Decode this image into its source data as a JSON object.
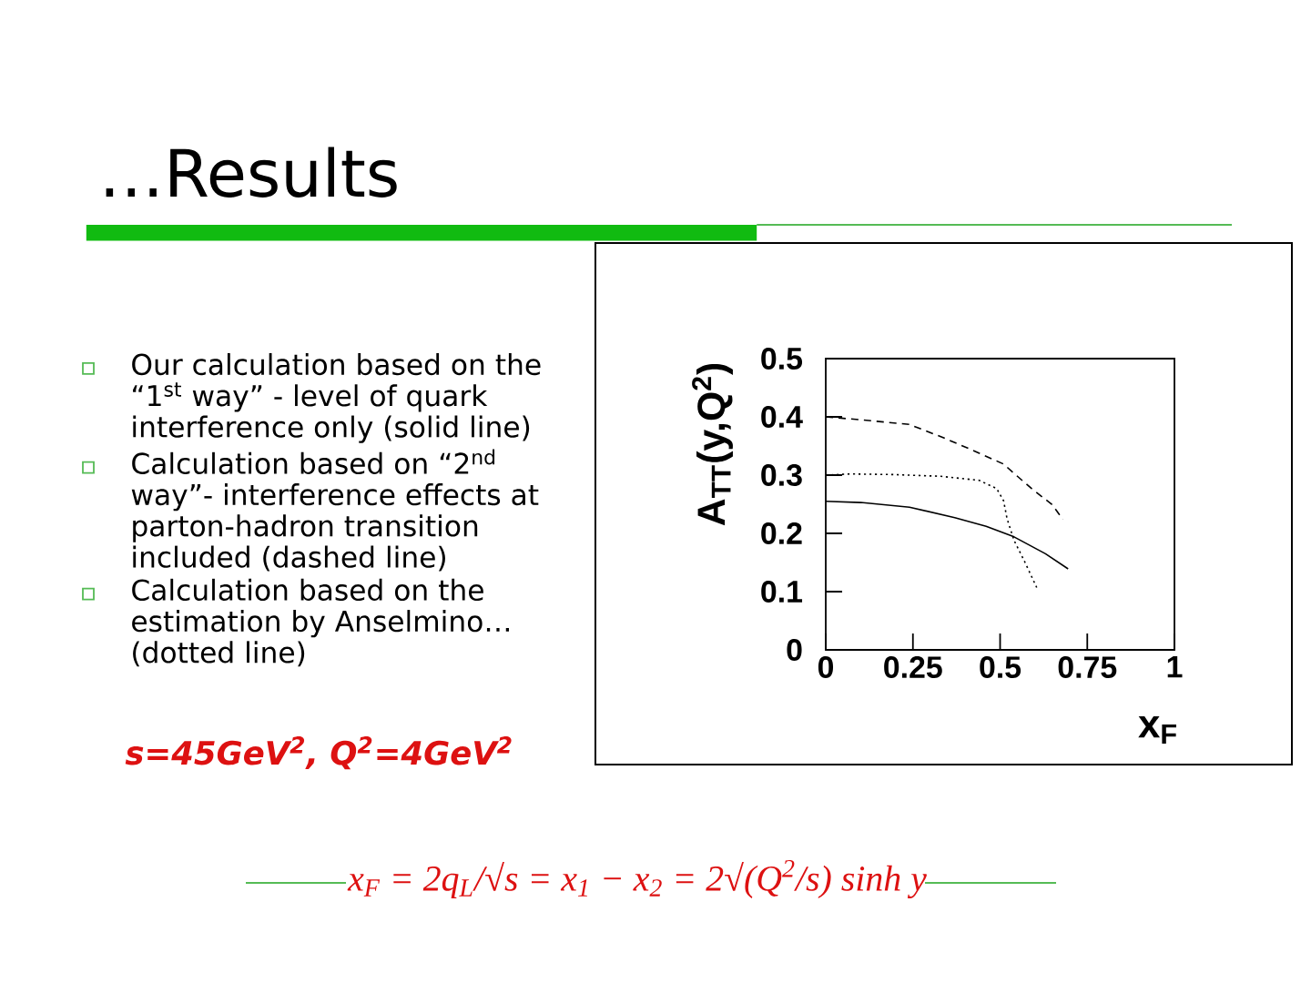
{
  "chart_data": {
    "type": "line",
    "title": "…Results",
    "xlabel": "x$_{F}$",
    "ylabel": "A$_{TT}$(y,Q$^{2}$)",
    "xlim": [
      0,
      1
    ],
    "ylim": [
      0,
      0.5
    ],
    "xticks": [
      0,
      0.25,
      0.5,
      0.75,
      1
    ],
    "yticks": [
      0,
      0.1,
      0.2,
      0.3,
      0.4,
      0.5
    ],
    "series": [
      {
        "color": "#000000",
        "line_style": "solid",
        "x": [
          0,
          0.1,
          0.24,
          0.37,
          0.46,
          0.54,
          0.63,
          0.695
        ],
        "values": [
          0.255,
          0.253,
          0.245,
          0.227,
          0.212,
          0.194,
          0.165,
          0.139
        ]
      },
      {
        "color": "#000000",
        "line_style": "dashed",
        "x": [
          0,
          0.1,
          0.24,
          0.33,
          0.42,
          0.51,
          0.54,
          0.59,
          0.65,
          0.68
        ],
        "values": [
          0.4,
          0.395,
          0.387,
          0.366,
          0.343,
          0.319,
          0.303,
          0.277,
          0.249,
          0.224
        ]
      },
      {
        "color": "#000000",
        "line_style": "dotted",
        "x": [
          0,
          0.07,
          0.19,
          0.33,
          0.44,
          0.49,
          0.51,
          0.52,
          0.54,
          0.57,
          0.605
        ],
        "values": [
          0.3,
          0.302,
          0.301,
          0.298,
          0.291,
          0.277,
          0.256,
          0.225,
          0.188,
          0.152,
          0.107
        ]
      }
    ],
    "annotations": [
      "Our calculation based on the “1$^{st}$ way” - level of quark interference only (solid line)",
      "Calculation based on “2$^{nd}$ way”- interference effects at parton-hadron transition included (dashed line)",
      "Calculation based on the estimation by Anselmino… (dotted line)",
      "s=45GeV$^{2}$, Q$^{2}$=4GeV$^{2}$",
      "x$_{F}$ = 2q$_{L}$/√s = x$_{1}$ − x$_{2}$ = 2√(Q$^{2}$/s) sinh y"
    ]
  }
}
